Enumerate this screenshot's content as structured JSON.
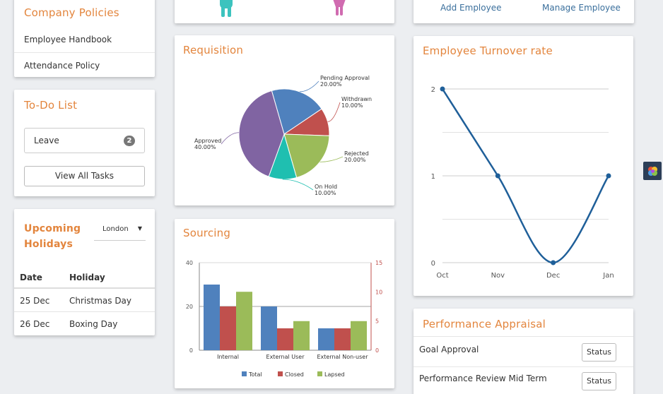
{
  "policies": {
    "title": "Company Policies",
    "items": [
      "Employee Handbook",
      "Attendance Policy"
    ]
  },
  "todo": {
    "title": "To-Do List",
    "leave_label": "Leave",
    "leave_count": "2",
    "view_all": "View All Tasks"
  },
  "holidays": {
    "title_line1": "Upcoming",
    "title_line2": "Holidays",
    "location": "London",
    "columns": [
      "Date",
      "Holiday"
    ],
    "rows": [
      {
        "date": "25 Dec",
        "holiday": "Christmas Day"
      },
      {
        "date": "26 Dec",
        "holiday": "Boxing Day"
      }
    ]
  },
  "employee": {
    "add": "Add Employee",
    "manage": "Manage Employee"
  },
  "colors": {
    "accent": "#e3853d",
    "line": "#1f5f99",
    "blue": "#4f81bd",
    "red": "#c0504d",
    "green": "#9bbb59",
    "purple": "#8064a2",
    "teal": "#1fbfb0"
  },
  "requisition": {
    "title": "Requisition",
    "chart_data": {
      "type": "pie",
      "slices": [
        {
          "name": "Pending Approval",
          "value": 20,
          "label": "20.00%",
          "color": "#4f81bd"
        },
        {
          "name": "Withdrawn",
          "value": 10,
          "label": "10.00%",
          "color": "#c0504d"
        },
        {
          "name": "Rejected",
          "value": 20,
          "label": "20.00%",
          "color": "#9bbb59"
        },
        {
          "name": "On Hold",
          "value": 10,
          "label": "10.00%",
          "color": "#1fbfb0"
        },
        {
          "name": "Approved",
          "value": 40,
          "label": "40.00%",
          "color": "#8064a2"
        }
      ]
    }
  },
  "sourcing": {
    "title": "Sourcing",
    "chart_data": {
      "type": "bar",
      "categories": [
        "Internal",
        "External User",
        "External Non-user"
      ],
      "series": [
        {
          "name": "Total",
          "values": [
            30,
            20,
            10
          ],
          "color": "#4f81bd"
        },
        {
          "name": "Closed",
          "values": [
            20,
            10,
            10
          ],
          "color": "#c0504d"
        },
        {
          "name": "Lapsed",
          "values": [
            26.7,
            13.3,
            13.3
          ],
          "color": "#9bbb59"
        }
      ],
      "ylim": [
        0,
        40
      ],
      "yticks": [
        "0",
        "20",
        "40"
      ],
      "y2ticks": [
        "0",
        "5",
        "10",
        "15"
      ],
      "legend": "bottom"
    }
  },
  "turnover": {
    "title": "Employee Turnover rate",
    "chart_data": {
      "type": "line",
      "categories": [
        "Oct",
        "Nov",
        "Dec",
        "Jan"
      ],
      "values": [
        2,
        1,
        0,
        1
      ],
      "ylim": [
        0,
        2
      ],
      "yticks": [
        "0",
        "1",
        "2"
      ],
      "grid": true
    }
  },
  "appraisal": {
    "title": "Performance Appraisal",
    "rows": [
      {
        "label": "Goal Approval",
        "status": "Status"
      },
      {
        "label": "Performance Review Mid Term",
        "status": "Status"
      }
    ]
  }
}
